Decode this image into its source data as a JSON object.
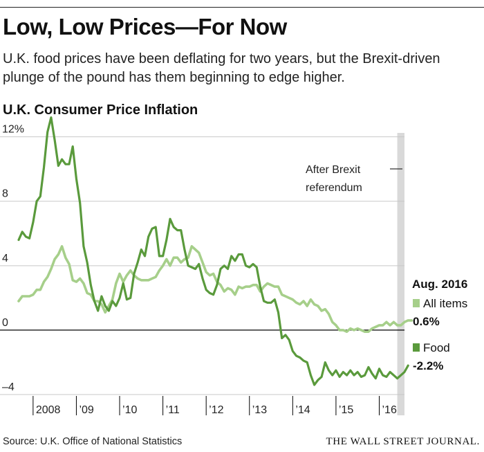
{
  "header": {
    "title": "Low, Low Prices—For Now",
    "subtitle": "U.K. food prices have been deflating for two years, but the Brexit-driven plunge of the pound has them beginning to edge higher.",
    "chart_title": "U.K. Consumer Price Inflation"
  },
  "footer": {
    "source": "Source: U.K. Office of National Statistics",
    "brand": "THE WALL STREET JOURNAL."
  },
  "colors": {
    "food": "#5a9a3c",
    "all_items": "#a6cf8a",
    "grid": "#c8c8c8",
    "zero_line": "#000000",
    "brexit_band": "#d9d9d9"
  },
  "chart_data": {
    "type": "line",
    "title": "U.K. Consumer Price Inflation",
    "xlabel": "",
    "ylabel": "",
    "ylim": [
      -4,
      12.5
    ],
    "y_ticks": [
      -4,
      0,
      4,
      8,
      12
    ],
    "y_tick_labels": [
      "–4",
      "0",
      "4",
      "8",
      "12%"
    ],
    "x_tick_labels": [
      {
        "label": "2008",
        "year": 2008
      },
      {
        "label": "’09",
        "year": 2009
      },
      {
        "label": "’10",
        "year": 2010
      },
      {
        "label": "’11",
        "year": 2011
      },
      {
        "label": "’12",
        "year": 2012
      },
      {
        "label": "’13",
        "year": 2013
      },
      {
        "label": "’14",
        "year": 2014
      },
      {
        "label": "’15",
        "year": 2015
      },
      {
        "label": "’16",
        "year": 2016
      }
    ],
    "start": "2007-09",
    "end": "2016-08",
    "annotation": {
      "text_lines": [
        "After Brexit",
        "referendum"
      ],
      "date": "2016-06"
    },
    "legend": {
      "title": "Aug. 2016",
      "placement": "right"
    },
    "series": [
      {
        "name": "All items",
        "last_value_label": "0.6%",
        "values": [
          1.8,
          2.1,
          2.1,
          2.1,
          2.2,
          2.5,
          2.5,
          3.0,
          3.3,
          3.8,
          4.4,
          4.7,
          5.2,
          4.5,
          4.1,
          3.1,
          3.0,
          3.2,
          2.9,
          2.3,
          2.2,
          1.8,
          1.8,
          1.6,
          1.1,
          1.5,
          1.9,
          2.9,
          3.5,
          3.0,
          3.4,
          3.7,
          3.4,
          3.2,
          3.1,
          3.1,
          3.1,
          3.2,
          3.3,
          3.7,
          4.0,
          4.4,
          4.0,
          4.5,
          4.5,
          4.2,
          4.4,
          4.5,
          5.2,
          5.0,
          4.8,
          4.2,
          3.6,
          3.4,
          3.5,
          3.0,
          2.8,
          2.4,
          2.6,
          2.5,
          2.2,
          2.7,
          2.6,
          2.7,
          2.7,
          2.8,
          2.8,
          2.4,
          2.7,
          2.9,
          2.8,
          2.7,
          2.7,
          2.2,
          2.1,
          2.0,
          1.9,
          1.7,
          1.6,
          1.8,
          1.5,
          1.9,
          1.6,
          1.5,
          1.2,
          1.3,
          1.0,
          0.5,
          0.3,
          0.0,
          0.0,
          -0.1,
          0.1,
          0.0,
          0.1,
          0.0,
          -0.1,
          -0.1,
          0.1,
          0.2,
          0.3,
          0.3,
          0.5,
          0.3,
          0.5,
          0.3,
          0.3,
          0.5,
          0.6,
          0.6
        ]
      },
      {
        "name": "Food",
        "last_value_label": "-2.2%",
        "values": [
          5.6,
          6.1,
          5.8,
          5.7,
          6.7,
          8.0,
          8.3,
          10.1,
          12.3,
          13.2,
          11.8,
          10.2,
          10.6,
          10.3,
          10.3,
          11.4,
          9.4,
          7.9,
          5.2,
          4.2,
          2.8,
          1.8,
          1.2,
          2.1,
          1.5,
          1.2,
          1.8,
          1.5,
          2.0,
          2.9,
          1.9,
          2.0,
          3.5,
          4.2,
          5.0,
          4.6,
          5.8,
          6.3,
          6.4,
          4.6,
          4.6,
          5.6,
          6.9,
          6.4,
          6.2,
          6.2,
          5.0,
          4.0,
          3.9,
          3.8,
          4.1,
          3.2,
          2.5,
          2.3,
          2.2,
          2.8,
          3.8,
          4.0,
          3.8,
          4.6,
          4.3,
          4.7,
          4.7,
          4.0,
          3.9,
          4.1,
          3.9,
          2.7,
          1.8,
          1.7,
          1.7,
          1.9,
          1.1,
          -0.5,
          -0.3,
          -0.6,
          -1.3,
          -1.6,
          -1.7,
          -1.9,
          -2.0,
          -2.8,
          -3.4,
          -3.1,
          -2.9,
          -2.0,
          -2.5,
          -2.8,
          -2.5,
          -2.9,
          -2.6,
          -2.8,
          -2.5,
          -2.8,
          -2.6,
          -2.9,
          -2.8,
          -2.3,
          -2.7,
          -3.0,
          -2.4,
          -2.8,
          -2.9,
          -2.6,
          -2.8,
          -3.0,
          -2.8,
          -2.6,
          -2.2
        ]
      }
    ]
  }
}
